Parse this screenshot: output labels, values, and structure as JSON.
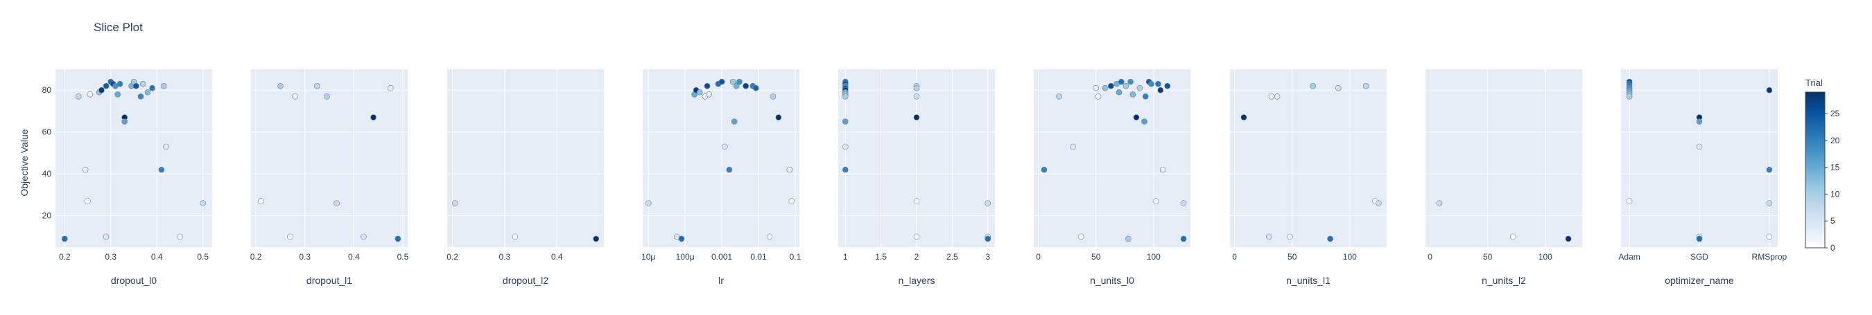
{
  "title": "Slice Plot",
  "y_axis_label": "Objective Value",
  "colorbar": {
    "title": "Trial",
    "ticks": [
      0,
      5,
      10,
      15,
      20,
      25
    ],
    "range": [
      0,
      29
    ]
  },
  "colors": {
    "plot_bg": "#e5ecf6",
    "grid": "#ffffff",
    "text": "#2a3f5f",
    "marker_line": "#6b7f99"
  },
  "chart_data": [
    {
      "type": "scatter",
      "xlabel": "dropout_l0",
      "scale": "linear",
      "xlim": [
        0.18,
        0.52
      ],
      "ylim": [
        5,
        90
      ],
      "y_ticks": [
        20,
        40,
        60,
        80
      ],
      "x_ticks": [
        {
          "v": 0.2,
          "label": "0.2"
        },
        {
          "v": 0.3,
          "label": "0.3"
        },
        {
          "v": 0.4,
          "label": "0.4"
        },
        {
          "v": 0.5,
          "label": "0.5"
        }
      ],
      "points": [
        {
          "x": 0.2,
          "y": 9,
          "trial": 22
        },
        {
          "x": 0.23,
          "y": 77,
          "trial": 8
        },
        {
          "x": 0.245,
          "y": 42,
          "trial": 3
        },
        {
          "x": 0.25,
          "y": 27,
          "trial": 0
        },
        {
          "x": 0.255,
          "y": 78,
          "trial": 2
        },
        {
          "x": 0.275,
          "y": 79,
          "trial": 12
        },
        {
          "x": 0.28,
          "y": 80,
          "trial": 28
        },
        {
          "x": 0.29,
          "y": 82,
          "trial": 24
        },
        {
          "x": 0.29,
          "y": 10,
          "trial": 5
        },
        {
          "x": 0.3,
          "y": 84,
          "trial": 22
        },
        {
          "x": 0.305,
          "y": 83,
          "trial": 26
        },
        {
          "x": 0.31,
          "y": 82,
          "trial": 18
        },
        {
          "x": 0.315,
          "y": 78,
          "trial": 15
        },
        {
          "x": 0.32,
          "y": 83,
          "trial": 20
        },
        {
          "x": 0.33,
          "y": 67,
          "trial": 29
        },
        {
          "x": 0.33,
          "y": 65,
          "trial": 16
        },
        {
          "x": 0.345,
          "y": 82,
          "trial": 14
        },
        {
          "x": 0.35,
          "y": 84,
          "trial": 11
        },
        {
          "x": 0.355,
          "y": 82,
          "trial": 25
        },
        {
          "x": 0.365,
          "y": 77,
          "trial": 19
        },
        {
          "x": 0.37,
          "y": 83,
          "trial": 9
        },
        {
          "x": 0.38,
          "y": 79,
          "trial": 13
        },
        {
          "x": 0.39,
          "y": 81,
          "trial": 21
        },
        {
          "x": 0.415,
          "y": 82,
          "trial": 10
        },
        {
          "x": 0.41,
          "y": 42,
          "trial": 20
        },
        {
          "x": 0.42,
          "y": 53,
          "trial": 4
        },
        {
          "x": 0.45,
          "y": 10,
          "trial": 1
        },
        {
          "x": 0.5,
          "y": 26,
          "trial": 7
        }
      ]
    },
    {
      "type": "scatter",
      "xlabel": "dropout_l1",
      "scale": "linear",
      "xlim": [
        0.19,
        0.51
      ],
      "ylim": [
        5,
        90
      ],
      "y_ticks": [
        20,
        40,
        60,
        80
      ],
      "x_ticks": [
        {
          "v": 0.2,
          "label": "0.2"
        },
        {
          "v": 0.3,
          "label": "0.3"
        },
        {
          "v": 0.4,
          "label": "0.4"
        },
        {
          "v": 0.5,
          "label": "0.5"
        }
      ],
      "points": [
        {
          "x": 0.21,
          "y": 27,
          "trial": 0
        },
        {
          "x": 0.25,
          "y": 82,
          "trial": 10
        },
        {
          "x": 0.27,
          "y": 10,
          "trial": 1
        },
        {
          "x": 0.28,
          "y": 77,
          "trial": 2
        },
        {
          "x": 0.325,
          "y": 82,
          "trial": 8
        },
        {
          "x": 0.345,
          "y": 77,
          "trial": 9
        },
        {
          "x": 0.365,
          "y": 26,
          "trial": 7
        },
        {
          "x": 0.42,
          "y": 10,
          "trial": 5
        },
        {
          "x": 0.44,
          "y": 67,
          "trial": 29
        },
        {
          "x": 0.475,
          "y": 81,
          "trial": 3
        },
        {
          "x": 0.49,
          "y": 9,
          "trial": 22
        }
      ]
    },
    {
      "type": "scatter",
      "xlabel": "dropout_l2",
      "scale": "linear",
      "xlim": [
        0.19,
        0.49
      ],
      "ylim": [
        5,
        90
      ],
      "y_ticks": [
        20,
        40,
        60,
        80
      ],
      "x_ticks": [
        {
          "v": 0.2,
          "label": "0.2"
        },
        {
          "v": 0.3,
          "label": "0.3"
        },
        {
          "v": 0.4,
          "label": "0.4"
        }
      ],
      "points": [
        {
          "x": 0.205,
          "y": 26,
          "trial": 7
        },
        {
          "x": 0.32,
          "y": 10,
          "trial": 1
        },
        {
          "x": 0.475,
          "y": 9,
          "trial": 29
        }
      ]
    },
    {
      "type": "scatter",
      "xlabel": "lr",
      "scale": "log",
      "xlim": [
        7e-06,
        0.13
      ],
      "ylim": [
        5,
        90
      ],
      "y_ticks": [
        20,
        40,
        60,
        80
      ],
      "x_ticks": [
        {
          "v": 1e-05,
          "label": "10μ"
        },
        {
          "v": 0.0001,
          "label": "100μ"
        },
        {
          "v": 0.001,
          "label": "0.001"
        },
        {
          "v": 0.01,
          "label": "0.01"
        },
        {
          "v": 0.1,
          "label": "0.1"
        }
      ],
      "points": [
        {
          "x": 1e-05,
          "y": 26,
          "trial": 7
        },
        {
          "x": 6e-05,
          "y": 10,
          "trial": 5
        },
        {
          "x": 8e-05,
          "y": 9,
          "trial": 22
        },
        {
          "x": 0.00018,
          "y": 78,
          "trial": 15
        },
        {
          "x": 0.0002,
          "y": 80,
          "trial": 28
        },
        {
          "x": 0.00025,
          "y": 79,
          "trial": 12
        },
        {
          "x": 0.00035,
          "y": 77,
          "trial": 2
        },
        {
          "x": 0.0004,
          "y": 82,
          "trial": 26
        },
        {
          "x": 0.00045,
          "y": 78,
          "trial": 3
        },
        {
          "x": 0.0008,
          "y": 83,
          "trial": 22
        },
        {
          "x": 0.001,
          "y": 84,
          "trial": 25
        },
        {
          "x": 0.0012,
          "y": 53,
          "trial": 4
        },
        {
          "x": 0.0016,
          "y": 42,
          "trial": 20
        },
        {
          "x": 0.002,
          "y": 84,
          "trial": 11
        },
        {
          "x": 0.0025,
          "y": 82,
          "trial": 14
        },
        {
          "x": 0.0022,
          "y": 65,
          "trial": 16
        },
        {
          "x": 0.003,
          "y": 84,
          "trial": 18
        },
        {
          "x": 0.0045,
          "y": 82,
          "trial": 27
        },
        {
          "x": 0.007,
          "y": 82,
          "trial": 20
        },
        {
          "x": 0.0085,
          "y": 81,
          "trial": 23
        },
        {
          "x": 0.02,
          "y": 10,
          "trial": 1
        },
        {
          "x": 0.025,
          "y": 77,
          "trial": 9
        },
        {
          "x": 0.035,
          "y": 67,
          "trial": 29
        },
        {
          "x": 0.07,
          "y": 42,
          "trial": 3
        },
        {
          "x": 0.08,
          "y": 27,
          "trial": 0
        }
      ]
    },
    {
      "type": "scatter",
      "xlabel": "n_layers",
      "scale": "linear",
      "xlim": [
        0.9,
        3.1
      ],
      "ylim": [
        5,
        90
      ],
      "y_ticks": [
        20,
        40,
        60,
        80
      ],
      "x_ticks": [
        {
          "v": 1,
          "label": "1"
        },
        {
          "v": 1.5,
          "label": "1.5"
        },
        {
          "v": 2,
          "label": "2"
        },
        {
          "v": 2.5,
          "label": "2.5"
        },
        {
          "v": 3,
          "label": "3"
        }
      ],
      "points": [
        {
          "x": 1,
          "y": 84,
          "trial": 22
        },
        {
          "x": 1,
          "y": 83,
          "trial": 25
        },
        {
          "x": 1,
          "y": 82,
          "trial": 18
        },
        {
          "x": 1,
          "y": 81,
          "trial": 24
        },
        {
          "x": 1,
          "y": 80,
          "trial": 28
        },
        {
          "x": 1,
          "y": 79,
          "trial": 14
        },
        {
          "x": 1,
          "y": 78,
          "trial": 12
        },
        {
          "x": 1,
          "y": 77,
          "trial": 10
        },
        {
          "x": 1,
          "y": 65,
          "trial": 16
        },
        {
          "x": 1,
          "y": 53,
          "trial": 4
        },
        {
          "x": 1,
          "y": 42,
          "trial": 20
        },
        {
          "x": 2,
          "y": 82,
          "trial": 8
        },
        {
          "x": 2,
          "y": 81,
          "trial": 9
        },
        {
          "x": 2,
          "y": 77,
          "trial": 6
        },
        {
          "x": 2,
          "y": 67,
          "trial": 29
        },
        {
          "x": 2,
          "y": 27,
          "trial": 0
        },
        {
          "x": 2,
          "y": 10,
          "trial": 1
        },
        {
          "x": 3,
          "y": 26,
          "trial": 7
        },
        {
          "x": 3,
          "y": 10,
          "trial": 5
        },
        {
          "x": 3,
          "y": 9,
          "trial": 22
        }
      ]
    },
    {
      "type": "scatter",
      "xlabel": "n_units_l0",
      "scale": "linear",
      "xlim": [
        -4,
        132
      ],
      "ylim": [
        5,
        90
      ],
      "y_ticks": [
        20,
        40,
        60,
        80
      ],
      "x_ticks": [
        {
          "v": 0,
          "label": "0"
        },
        {
          "v": 50,
          "label": "50"
        },
        {
          "v": 100,
          "label": "100"
        }
      ],
      "points": [
        {
          "x": 5,
          "y": 42,
          "trial": 20
        },
        {
          "x": 18,
          "y": 77,
          "trial": 8
        },
        {
          "x": 30,
          "y": 53,
          "trial": 4
        },
        {
          "x": 37,
          "y": 10,
          "trial": 1
        },
        {
          "x": 50,
          "y": 81,
          "trial": 3
        },
        {
          "x": 52,
          "y": 77,
          "trial": 2
        },
        {
          "x": 58,
          "y": 81,
          "trial": 12
        },
        {
          "x": 63,
          "y": 82,
          "trial": 26
        },
        {
          "x": 68,
          "y": 83,
          "trial": 14
        },
        {
          "x": 70,
          "y": 79,
          "trial": 15
        },
        {
          "x": 72,
          "y": 84,
          "trial": 22
        },
        {
          "x": 76,
          "y": 82,
          "trial": 11
        },
        {
          "x": 78,
          "y": 9,
          "trial": 10
        },
        {
          "x": 80,
          "y": 84,
          "trial": 18
        },
        {
          "x": 82,
          "y": 78,
          "trial": 13
        },
        {
          "x": 85,
          "y": 67,
          "trial": 29
        },
        {
          "x": 88,
          "y": 81,
          "trial": 9
        },
        {
          "x": 92,
          "y": 65,
          "trial": 16
        },
        {
          "x": 93,
          "y": 77,
          "trial": 20
        },
        {
          "x": 96,
          "y": 84,
          "trial": 24
        },
        {
          "x": 98,
          "y": 83,
          "trial": 19
        },
        {
          "x": 102,
          "y": 27,
          "trial": 0
        },
        {
          "x": 104,
          "y": 83,
          "trial": 21
        },
        {
          "x": 106,
          "y": 80,
          "trial": 28
        },
        {
          "x": 108,
          "y": 42,
          "trial": 3
        },
        {
          "x": 112,
          "y": 82,
          "trial": 25
        },
        {
          "x": 126,
          "y": 26,
          "trial": 7
        },
        {
          "x": 126,
          "y": 9,
          "trial": 22
        }
      ]
    },
    {
      "type": "scatter",
      "xlabel": "n_units_l1",
      "scale": "linear",
      "xlim": [
        -4,
        132
      ],
      "ylim": [
        5,
        90
      ],
      "y_ticks": [
        20,
        40,
        60,
        80
      ],
      "x_ticks": [
        {
          "v": 0,
          "label": "0"
        },
        {
          "v": 50,
          "label": "50"
        },
        {
          "v": 100,
          "label": "100"
        }
      ],
      "points": [
        {
          "x": 8,
          "y": 67,
          "trial": 29
        },
        {
          "x": 30,
          "y": 10,
          "trial": 5
        },
        {
          "x": 32,
          "y": 77,
          "trial": 2
        },
        {
          "x": 37,
          "y": 77,
          "trial": 3
        },
        {
          "x": 48,
          "y": 10,
          "trial": 1
        },
        {
          "x": 68,
          "y": 82,
          "trial": 10
        },
        {
          "x": 83,
          "y": 9,
          "trial": 22
        },
        {
          "x": 90,
          "y": 81,
          "trial": 6
        },
        {
          "x": 114,
          "y": 82,
          "trial": 8
        },
        {
          "x": 122,
          "y": 27,
          "trial": 0
        },
        {
          "x": 125,
          "y": 26,
          "trial": 7
        }
      ]
    },
    {
      "type": "scatter",
      "xlabel": "n_units_l2",
      "scale": "linear",
      "xlim": [
        -4,
        132
      ],
      "ylim": [
        5,
        90
      ],
      "y_ticks": [
        20,
        40,
        60,
        80
      ],
      "x_ticks": [
        {
          "v": 0,
          "label": "0"
        },
        {
          "v": 50,
          "label": "50"
        },
        {
          "v": 100,
          "label": "100"
        }
      ],
      "points": [
        {
          "x": 8,
          "y": 26,
          "trial": 7
        },
        {
          "x": 72,
          "y": 10,
          "trial": 1
        },
        {
          "x": 120,
          "y": 9,
          "trial": 29
        }
      ]
    },
    {
      "type": "scatter",
      "xlabel": "optimizer_name",
      "scale": "category",
      "xlim": [
        -0.12,
        2.12
      ],
      "ylim": [
        5,
        90
      ],
      "y_ticks": [
        20,
        40,
        60,
        80
      ],
      "x_ticks": [
        {
          "v": 0,
          "label": "Adam"
        },
        {
          "v": 1,
          "label": "SGD"
        },
        {
          "v": 2,
          "label": "RMSprop"
        }
      ],
      "points": [
        {
          "x": 0,
          "y": 84,
          "trial": 25
        },
        {
          "x": 0,
          "y": 83,
          "trial": 22
        },
        {
          "x": 0,
          "y": 82,
          "trial": 20
        },
        {
          "x": 0,
          "y": 81,
          "trial": 18
        },
        {
          "x": 0,
          "y": 80,
          "trial": 16
        },
        {
          "x": 0,
          "y": 79,
          "trial": 14
        },
        {
          "x": 0,
          "y": 78,
          "trial": 12
        },
        {
          "x": 0,
          "y": 77,
          "trial": 10
        },
        {
          "x": 0,
          "y": 27,
          "trial": 0
        },
        {
          "x": 1,
          "y": 67,
          "trial": 29
        },
        {
          "x": 1,
          "y": 65,
          "trial": 16
        },
        {
          "x": 1,
          "y": 53,
          "trial": 4
        },
        {
          "x": 1,
          "y": 10,
          "trial": 5
        },
        {
          "x": 1,
          "y": 9,
          "trial": 22
        },
        {
          "x": 2,
          "y": 80,
          "trial": 28
        },
        {
          "x": 2,
          "y": 42,
          "trial": 20
        },
        {
          "x": 2,
          "y": 26,
          "trial": 7
        },
        {
          "x": 2,
          "y": 10,
          "trial": 1
        }
      ]
    }
  ]
}
